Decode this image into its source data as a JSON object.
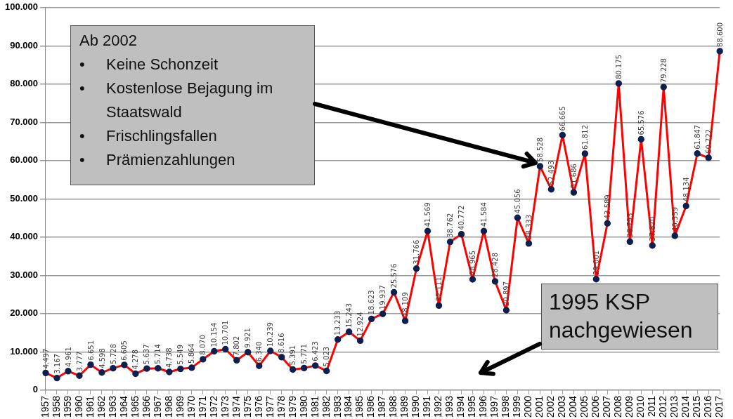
{
  "chart_data": {
    "type": "line",
    "categories": [
      "1957",
      "1958",
      "1959",
      "1960",
      "1961",
      "1962",
      "1963",
      "1964",
      "1965",
      "1966",
      "1967",
      "1968",
      "1969",
      "1970",
      "1971",
      "1972",
      "1973",
      "1974",
      "1975",
      "1976",
      "1977",
      "1978",
      "1979",
      "1980",
      "1981",
      "1982",
      "1983",
      "1984",
      "1985",
      "1986",
      "1987",
      "1988",
      "1989",
      "1990",
      "1991",
      "1992",
      "1993",
      "1994",
      "1995",
      "1996",
      "1997",
      "1998",
      "1999",
      "2000",
      "2001",
      "2002",
      "2003",
      "2004",
      "2005",
      "2006",
      "2007",
      "2008",
      "2009",
      "2010",
      "2011",
      "2012",
      "2013",
      "2014",
      "2015",
      "2016",
      "2017"
    ],
    "series": [
      {
        "color": "#ff0000",
        "values": [
          4497,
          3167,
          4961,
          3777,
          6651,
          4598,
          5728,
          6605,
          4278,
          5637,
          5714,
          4738,
          5549,
          5864,
          8070,
          10154,
          10701,
          7802,
          9921,
          6340,
          10239,
          8616,
          5391,
          5771,
          6423,
          5023,
          13233,
          15243,
          12924,
          18623,
          19937,
          25576,
          18109,
          31766,
          41569,
          22111,
          38762,
          40772,
          28965,
          41584,
          28428,
          20897,
          45056,
          38333,
          58528,
          52493,
          66665,
          51686,
          61812,
          29001,
          43589,
          80175,
          38793,
          65576,
          37820,
          79228,
          40359,
          48134,
          61847,
          60722,
          88600
        ],
        "value_labels": [
          "4.497",
          "3.167",
          "4.961",
          "3.777",
          "6.651",
          "4.598",
          "5.728",
          "6.605",
          "4.278",
          "5.637",
          "5.714",
          "4.738",
          "5.549",
          "5.864",
          "8.070",
          "10.154",
          "10.701",
          "7.802",
          "9.921",
          "6.340",
          "10.239",
          "8.616",
          "5.391",
          "5.771",
          "6.423",
          "5.023",
          "13.233",
          "15.243",
          "12.924",
          "18.623",
          "19.937",
          "25.576",
          "18.109",
          "31.766",
          "41.569",
          "22.111",
          "38.762",
          "40.772",
          "28.965",
          "41.584",
          "28.428",
          "20.897",
          "45.056",
          "38.333",
          "58.528",
          "52.493",
          "66.665",
          "51.686",
          "61.812",
          "29.001",
          "43.589",
          "80.175",
          "38.793",
          "65.576",
          "37.820",
          "79.228",
          "40.359",
          "48.134",
          "61.847",
          "60.722",
          "88.600"
        ]
      }
    ],
    "ylim": [
      0,
      100000
    ],
    "yticks": [
      0,
      {
        "value": 10000,
        "label": "10.000"
      },
      {
        "value": 20000,
        "label": "20.000"
      },
      {
        "value": 30000,
        "label": "30.000"
      },
      {
        "value": 40000,
        "label": "40.000"
      },
      {
        "value": 50000,
        "label": "50.000"
      },
      {
        "value": 60000,
        "label": "60.000"
      },
      {
        "value": 70000,
        "label": "70.000"
      },
      {
        "value": 80000,
        "label": "80.000"
      },
      {
        "value": 90000,
        "label": "90.000"
      },
      {
        "value": 100000,
        "label": "100.000"
      }
    ],
    "grid": "y",
    "legend": false,
    "marker": "circle",
    "line_style": "solid",
    "annotations": [
      "Ab 2002\n•\tKeine Schonzeit\n•\tKostenlose Bejagung im\n\tStaatswald\n•\tFrischlingsfallen\n•\tPrämienzahlungen",
      "1995 KSP nachgewiesen"
    ]
  }
}
